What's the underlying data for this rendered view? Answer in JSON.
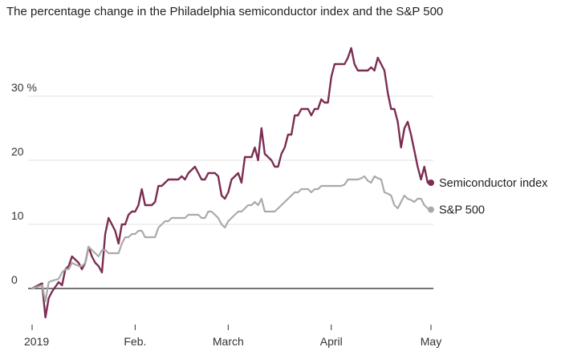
{
  "chart_data": {
    "type": "line",
    "title": "The percentage change in the Philadelphia semiconductor index and the S&P 500",
    "xlabel": "",
    "ylabel": "",
    "ylim": [
      -5,
      37
    ],
    "y_ticks": [
      0,
      10,
      20,
      30
    ],
    "y_tick_labels": [
      "0",
      "10",
      "20",
      "30 %"
    ],
    "x_ticks": [
      {
        "label": "2019",
        "day": 0
      },
      {
        "label": "Feb.",
        "day": 31
      },
      {
        "label": "March",
        "day": 59
      },
      {
        "label": "April",
        "day": 90
      },
      {
        "label": "May",
        "day": 120
      }
    ],
    "grid": true,
    "legend": "end-of-line labels",
    "series": [
      {
        "name": "Semiconductor index",
        "color": "#7b2d52",
        "points": [
          [
            0,
            0
          ],
          [
            3,
            0.8
          ],
          [
            4,
            -4.5
          ],
          [
            5,
            -1.5
          ],
          [
            6,
            -0.5
          ],
          [
            8,
            1
          ],
          [
            9,
            0.5
          ],
          [
            10,
            3
          ],
          [
            11,
            3.5
          ],
          [
            12,
            5
          ],
          [
            14,
            4
          ],
          [
            15,
            3
          ],
          [
            16,
            4
          ],
          [
            17,
            6.5
          ],
          [
            18,
            5
          ],
          [
            19,
            4
          ],
          [
            20,
            3.5
          ],
          [
            21,
            2.5
          ],
          [
            22,
            8.5
          ],
          [
            23,
            11
          ],
          [
            24,
            10
          ],
          [
            25,
            9
          ],
          [
            26,
            7
          ],
          [
            27,
            10
          ],
          [
            28,
            10
          ],
          [
            29,
            11.5
          ],
          [
            30,
            12
          ],
          [
            31,
            12
          ],
          [
            32,
            13
          ],
          [
            33,
            15.5
          ],
          [
            34,
            13
          ],
          [
            35,
            13
          ],
          [
            36,
            13
          ],
          [
            37,
            13.5
          ],
          [
            38,
            16
          ],
          [
            39,
            16
          ],
          [
            40,
            16.5
          ],
          [
            41,
            17
          ],
          [
            42,
            17
          ],
          [
            43,
            17
          ],
          [
            44,
            17
          ],
          [
            45,
            17.5
          ],
          [
            46,
            17
          ],
          [
            47,
            18
          ],
          [
            48,
            18.5
          ],
          [
            49,
            19
          ],
          [
            50,
            18
          ],
          [
            51,
            17
          ],
          [
            52,
            17
          ],
          [
            53,
            18
          ],
          [
            54,
            18
          ],
          [
            55,
            18
          ],
          [
            56,
            17.5
          ],
          [
            57,
            14.5
          ],
          [
            58,
            14
          ],
          [
            59,
            15
          ],
          [
            60,
            17
          ],
          [
            61,
            17.5
          ],
          [
            62,
            18
          ],
          [
            63,
            16.5
          ],
          [
            64,
            20.5
          ],
          [
            65,
            20.5
          ],
          [
            66,
            20.5
          ],
          [
            67,
            22
          ],
          [
            68,
            20
          ],
          [
            69,
            25
          ],
          [
            70,
            21
          ],
          [
            71,
            20.5
          ],
          [
            72,
            20
          ],
          [
            73,
            19
          ],
          [
            74,
            19
          ],
          [
            75,
            21
          ],
          [
            76,
            22
          ],
          [
            77,
            24
          ],
          [
            78,
            24
          ],
          [
            79,
            27
          ],
          [
            80,
            27
          ],
          [
            81,
            28
          ],
          [
            82,
            28
          ],
          [
            83,
            28
          ],
          [
            84,
            27
          ],
          [
            85,
            28
          ],
          [
            86,
            28
          ],
          [
            87,
            29.5
          ],
          [
            88,
            29
          ],
          [
            89,
            29
          ],
          [
            90,
            33
          ],
          [
            91,
            35
          ],
          [
            92,
            35
          ],
          [
            93,
            35
          ],
          [
            94,
            35
          ],
          [
            95,
            36
          ],
          [
            96,
            37.5
          ],
          [
            97,
            35
          ],
          [
            98,
            34
          ],
          [
            99,
            34
          ],
          [
            100,
            34
          ],
          [
            101,
            34
          ],
          [
            102,
            34.5
          ],
          [
            103,
            34
          ],
          [
            104,
            36
          ],
          [
            105,
            35
          ],
          [
            106,
            34
          ],
          [
            107,
            30.5
          ],
          [
            108,
            28
          ],
          [
            109,
            28
          ],
          [
            110,
            26
          ],
          [
            111,
            22
          ],
          [
            112,
            25
          ],
          [
            113,
            26
          ],
          [
            114,
            24
          ],
          [
            115,
            21.5
          ],
          [
            116,
            19
          ],
          [
            117,
            17
          ],
          [
            118,
            19
          ],
          [
            119,
            16.5
          ],
          [
            120,
            16.5
          ]
        ]
      },
      {
        "name": "S&P 500",
        "color": "#aaaaaa",
        "points": [
          [
            0,
            0
          ],
          [
            3,
            0.5
          ],
          [
            4,
            -2
          ],
          [
            5,
            1
          ],
          [
            6,
            1.2
          ],
          [
            8,
            1.5
          ],
          [
            9,
            2.5
          ],
          [
            10,
            3
          ],
          [
            11,
            3
          ],
          [
            12,
            4
          ],
          [
            14,
            3.5
          ],
          [
            15,
            3.5
          ],
          [
            16,
            4
          ],
          [
            17,
            6.5
          ],
          [
            18,
            6
          ],
          [
            19,
            5.5
          ],
          [
            20,
            5
          ],
          [
            21,
            6
          ],
          [
            22,
            6
          ],
          [
            23,
            5.5
          ],
          [
            24,
            5.5
          ],
          [
            25,
            5.5
          ],
          [
            26,
            5.5
          ],
          [
            27,
            7
          ],
          [
            28,
            8
          ],
          [
            29,
            8
          ],
          [
            30,
            8.5
          ],
          [
            31,
            8.5
          ],
          [
            32,
            9
          ],
          [
            33,
            9
          ],
          [
            34,
            8
          ],
          [
            35,
            8
          ],
          [
            36,
            8
          ],
          [
            37,
            8
          ],
          [
            38,
            9.5
          ],
          [
            39,
            10
          ],
          [
            40,
            10.5
          ],
          [
            41,
            10.5
          ],
          [
            42,
            11
          ],
          [
            43,
            11
          ],
          [
            44,
            11
          ],
          [
            45,
            11
          ],
          [
            46,
            11
          ],
          [
            47,
            11.5
          ],
          [
            48,
            11.5
          ],
          [
            49,
            11.5
          ],
          [
            50,
            11.5
          ],
          [
            51,
            11
          ],
          [
            52,
            11
          ],
          [
            53,
            12
          ],
          [
            54,
            12
          ],
          [
            55,
            11.5
          ],
          [
            56,
            11
          ],
          [
            57,
            10
          ],
          [
            58,
            9.5
          ],
          [
            59,
            10.5
          ],
          [
            60,
            11
          ],
          [
            61,
            11.5
          ],
          [
            62,
            12
          ],
          [
            63,
            12
          ],
          [
            64,
            12.5
          ],
          [
            65,
            13
          ],
          [
            66,
            13
          ],
          [
            67,
            13.5
          ],
          [
            68,
            13
          ],
          [
            69,
            14
          ],
          [
            70,
            12
          ],
          [
            71,
            12
          ],
          [
            72,
            12
          ],
          [
            73,
            12
          ],
          [
            74,
            12.5
          ],
          [
            75,
            13
          ],
          [
            76,
            13.5
          ],
          [
            77,
            14
          ],
          [
            78,
            14.5
          ],
          [
            79,
            15
          ],
          [
            80,
            15
          ],
          [
            81,
            15.5
          ],
          [
            82,
            15.5
          ],
          [
            83,
            15.5
          ],
          [
            84,
            15
          ],
          [
            85,
            15.5
          ],
          [
            86,
            15.5
          ],
          [
            87,
            16
          ],
          [
            88,
            16
          ],
          [
            89,
            16
          ],
          [
            90,
            16
          ],
          [
            91,
            16
          ],
          [
            92,
            16
          ],
          [
            93,
            16
          ],
          [
            94,
            16.2
          ],
          [
            95,
            17
          ],
          [
            96,
            17
          ],
          [
            97,
            17
          ],
          [
            98,
            17
          ],
          [
            99,
            17.2
          ],
          [
            100,
            17.5
          ],
          [
            101,
            16.8
          ],
          [
            102,
            16.5
          ],
          [
            103,
            17.5
          ],
          [
            104,
            17.2
          ],
          [
            105,
            17
          ],
          [
            106,
            15
          ],
          [
            107,
            14.8
          ],
          [
            108,
            14.5
          ],
          [
            109,
            13
          ],
          [
            110,
            12.5
          ],
          [
            111,
            13.5
          ],
          [
            112,
            14.5
          ],
          [
            113,
            14
          ],
          [
            114,
            13.8
          ],
          [
            115,
            13.5
          ],
          [
            116,
            14
          ],
          [
            117,
            14
          ],
          [
            118,
            13
          ],
          [
            119,
            12.5
          ],
          [
            120,
            12.3
          ]
        ]
      }
    ]
  }
}
